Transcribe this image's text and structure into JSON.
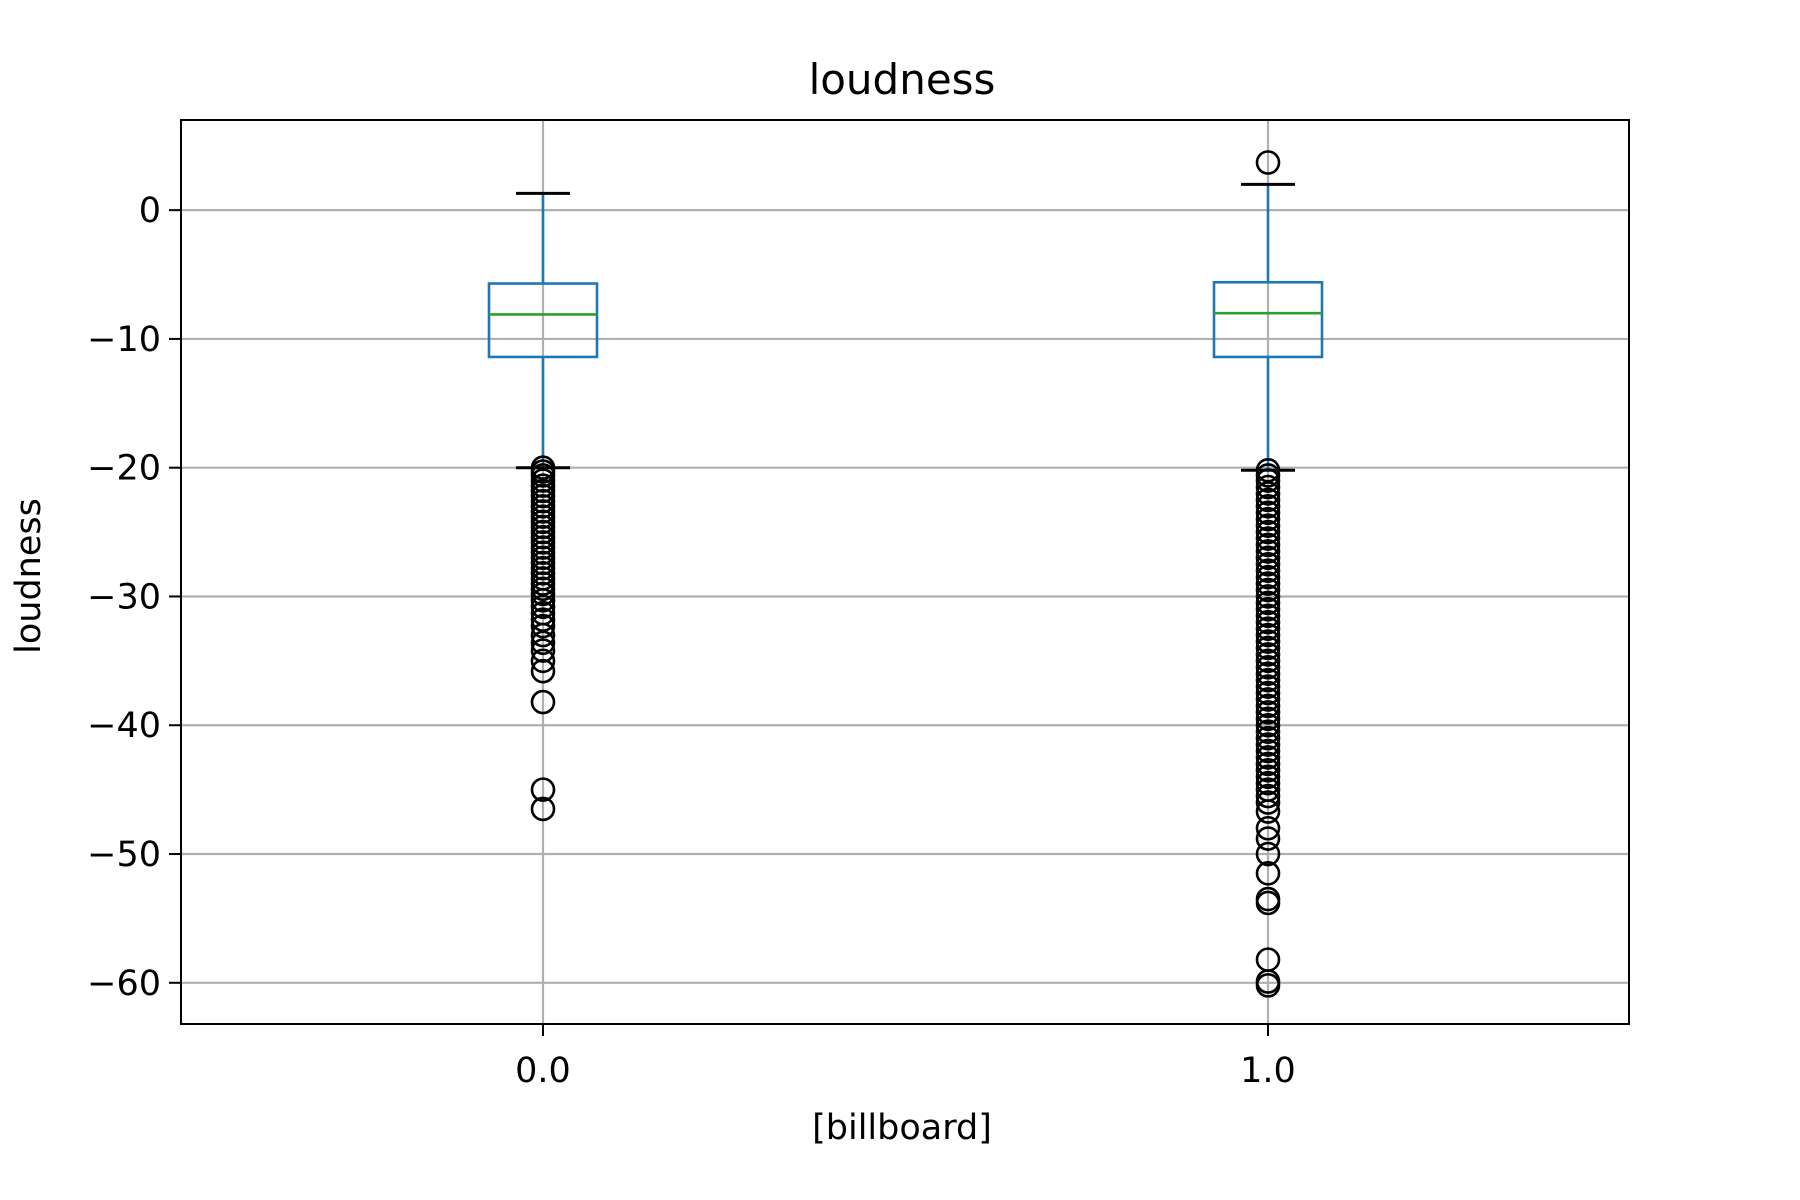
{
  "chart_data": {
    "type": "box",
    "title": "loudness",
    "xlabel": "[billboard]",
    "ylabel": "loudness",
    "ylim": [
      -63.2,
      7.0
    ],
    "yticks": [
      0,
      -10,
      -20,
      -30,
      -40,
      -50,
      -60
    ],
    "ytick_labels": [
      "0",
      "−10",
      "−20",
      "−30",
      "−40",
      "−50",
      "−60"
    ],
    "grid": true,
    "colors": {
      "box": "#1f77b4",
      "median": "#2ca02c",
      "whisker_cap": "#000000",
      "flier": "#000000",
      "grid": "#b0b0b0"
    },
    "groups": [
      {
        "label": "0.0",
        "x": 0.0,
        "whisker_high": 1.3,
        "q3": -5.7,
        "median": -8.1,
        "q1": -11.4,
        "whisker_low": -20.0,
        "outliers": [
          -20.0,
          -20.3,
          -20.6,
          -21.0,
          -21.4,
          -21.8,
          -22.2,
          -22.6,
          -23.0,
          -23.4,
          -23.8,
          -24.2,
          -24.6,
          -25.0,
          -25.4,
          -25.8,
          -26.2,
          -26.6,
          -27.0,
          -27.4,
          -27.8,
          -28.2,
          -28.6,
          -29.0,
          -29.4,
          -29.8,
          -30.3,
          -30.8,
          -31.3,
          -31.8,
          -32.3,
          -33.0,
          -33.6,
          -34.2,
          -35.0,
          -35.8,
          -38.2,
          -45.0,
          -46.5
        ]
      },
      {
        "label": "1.0",
        "x": 1.0,
        "whisker_high": 2.0,
        "q3": -5.6,
        "median": -8.0,
        "q1": -11.4,
        "whisker_low": -20.2,
        "outliers": [
          3.7,
          -20.2,
          -20.6,
          -21.0,
          -21.5,
          -22.0,
          -22.5,
          -23.0,
          -23.5,
          -24.0,
          -24.5,
          -25.0,
          -25.5,
          -26.0,
          -26.5,
          -27.0,
          -27.5,
          -28.0,
          -28.5,
          -29.0,
          -29.5,
          -30.0,
          -30.5,
          -31.0,
          -31.5,
          -32.0,
          -32.5,
          -33.0,
          -33.5,
          -34.0,
          -34.5,
          -35.0,
          -35.5,
          -36.0,
          -36.5,
          -37.0,
          -37.5,
          -38.0,
          -38.5,
          -39.0,
          -39.5,
          -40.0,
          -40.5,
          -41.0,
          -41.5,
          -42.0,
          -42.5,
          -43.0,
          -43.5,
          -44.0,
          -44.5,
          -45.0,
          -45.5,
          -46.0,
          -46.7,
          -48.0,
          -48.8,
          -50.0,
          -51.5,
          -53.5,
          -53.8,
          -58.2,
          -59.9,
          -60.2
        ]
      }
    ]
  }
}
